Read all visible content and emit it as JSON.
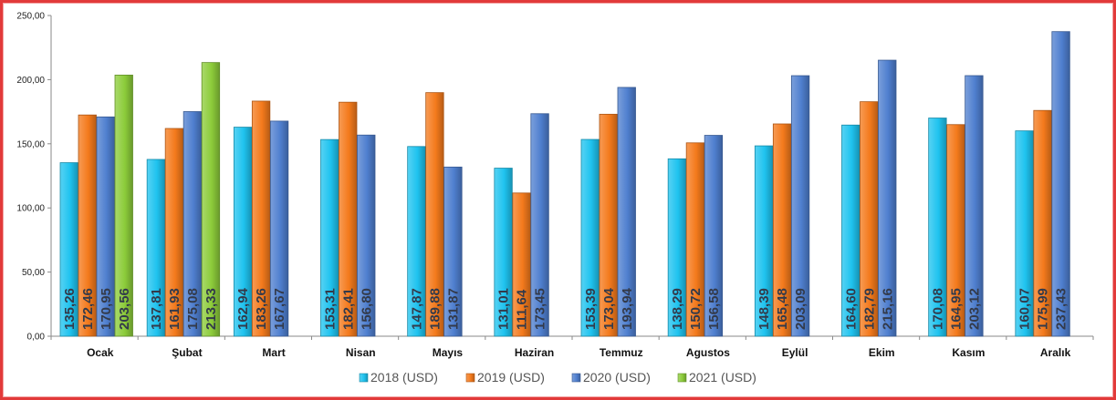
{
  "chart_data": {
    "type": "bar",
    "title": "",
    "xlabel": "",
    "ylabel": "",
    "ylim": [
      0,
      250
    ],
    "yticks": [
      "0,00",
      "50,00",
      "100,00",
      "150,00",
      "200,00",
      "250,00"
    ],
    "ytick_values": [
      0,
      50,
      100,
      150,
      200,
      250
    ],
    "legend_position": "bottom",
    "categories": [
      "Ocak",
      "Şubat",
      "Mart",
      "Nisan",
      "Mayıs",
      "Haziran",
      "Temmuz",
      "Agustos",
      "Eylül",
      "Ekim",
      "Kasım",
      "Aralık"
    ],
    "series": [
      {
        "name": "2018 (USD)",
        "color": "#1fc3ef",
        "values": [
          135.26,
          137.81,
          162.94,
          153.31,
          147.87,
          131.01,
          153.39,
          138.29,
          148.39,
          164.6,
          170.08,
          160.07
        ],
        "labels": [
          "135,26",
          "137,81",
          "162,94",
          "153,31",
          "147,87",
          "131,01",
          "153,39",
          "138,29",
          "148,39",
          "164,60",
          "170,08",
          "160,07"
        ]
      },
      {
        "name": "2019 (USD)",
        "color": "#f47a1c",
        "values": [
          172.46,
          161.93,
          183.26,
          182.41,
          189.88,
          111.64,
          173.04,
          150.72,
          165.48,
          182.79,
          164.95,
          175.99
        ],
        "labels": [
          "172,46",
          "161,93",
          "183,26",
          "182,41",
          "189,88",
          "111,64",
          "173,04",
          "150,72",
          "165,48",
          "182,79",
          "164,95",
          "175,99"
        ]
      },
      {
        "name": "2020 (USD)",
        "color": "#4f7fcf",
        "values": [
          170.95,
          175.08,
          167.67,
          156.8,
          131.87,
          173.45,
          193.94,
          156.58,
          203.09,
          215.16,
          203.12,
          237.43
        ],
        "labels": [
          "170,95",
          "175,08",
          "167,67",
          "156,80",
          "131,87",
          "173,45",
          "193,94",
          "156,58",
          "203,09",
          "215,16",
          "203,12",
          "237,43"
        ]
      },
      {
        "name": "2021 (USD)",
        "color": "#8ccc3a",
        "values": [
          203.56,
          213.33,
          null,
          null,
          null,
          null,
          null,
          null,
          null,
          null,
          null,
          null
        ],
        "labels": [
          "203,56",
          "213,33",
          null,
          null,
          null,
          null,
          null,
          null,
          null,
          null,
          null,
          null
        ]
      }
    ]
  }
}
